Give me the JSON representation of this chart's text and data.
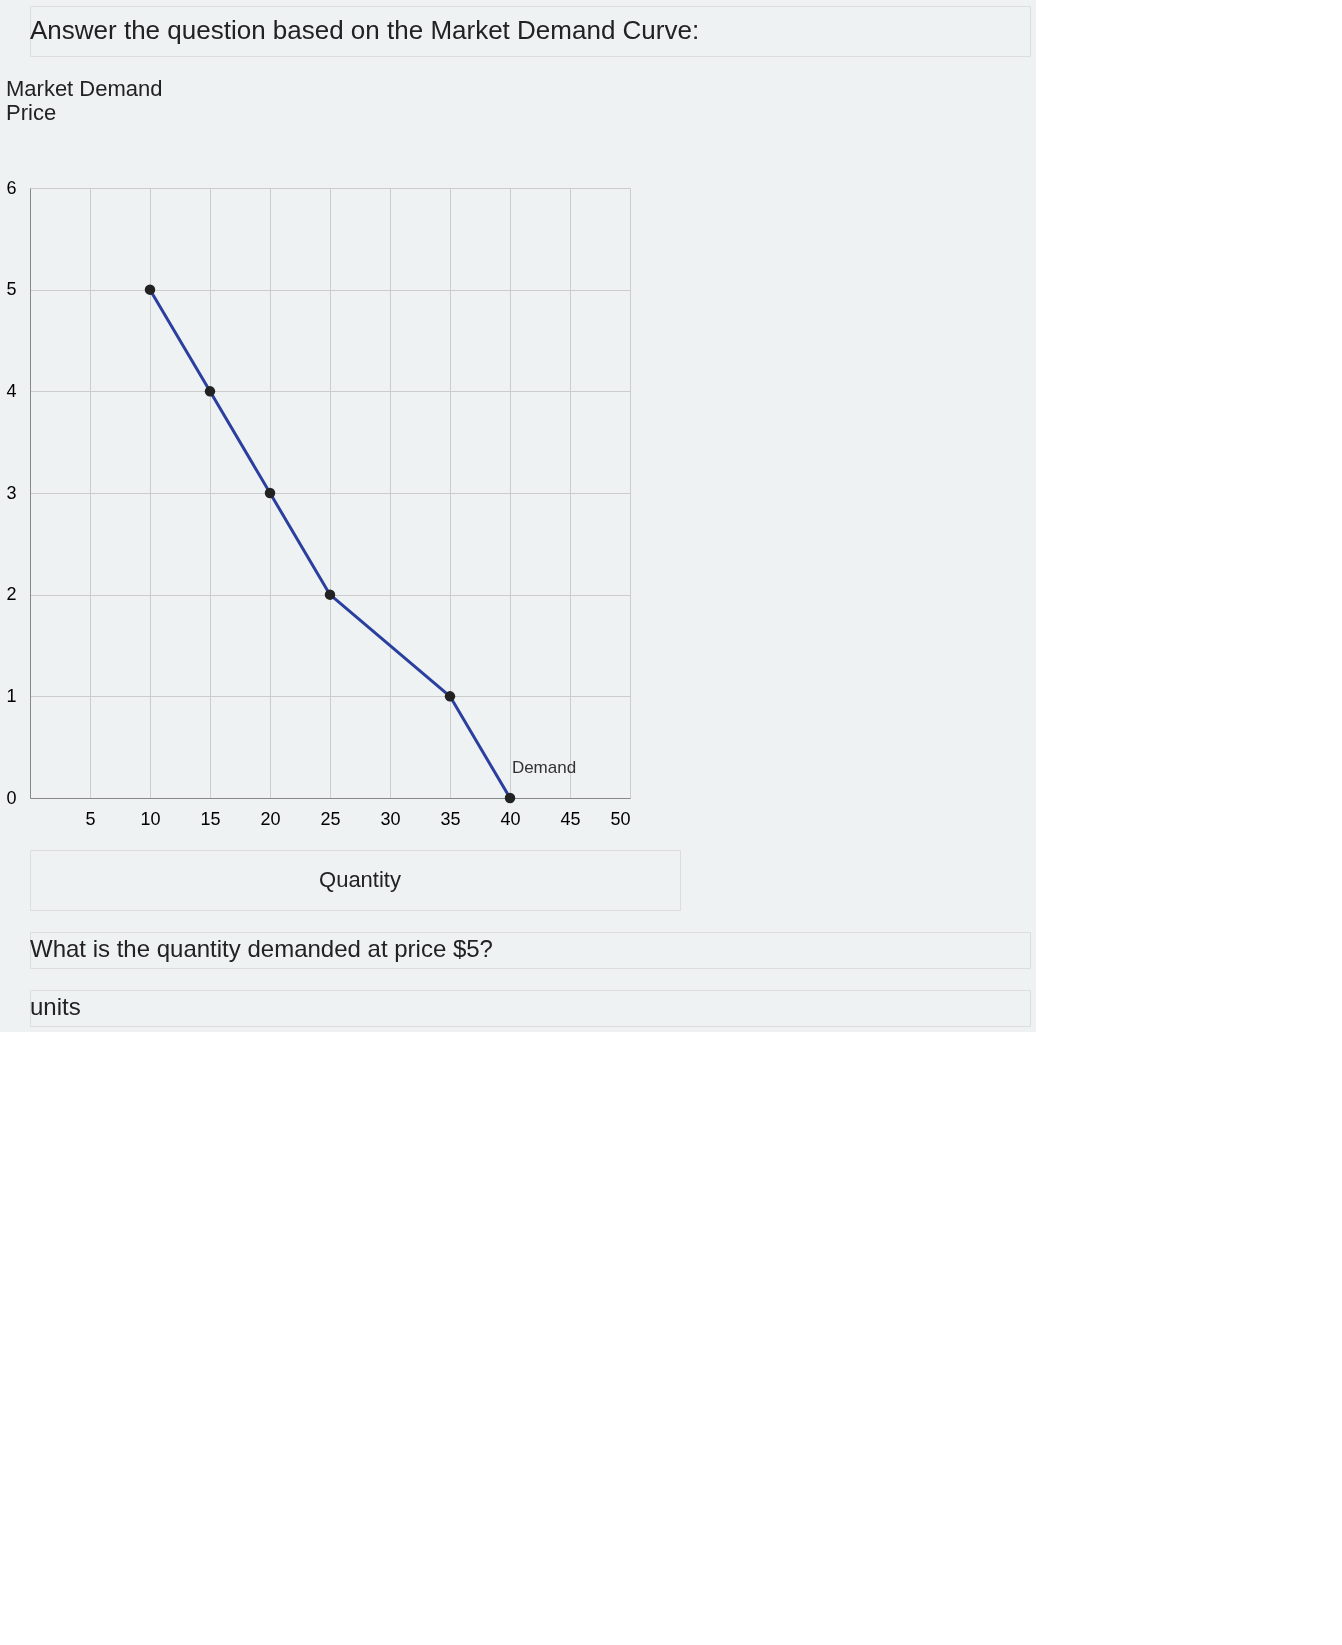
{
  "chart_data": {
    "type": "line",
    "title": "Market Demand",
    "xlabel": "Quantity",
    "ylabel": "Price",
    "annotations": [
      "Answer the question based on the Market Demand Curve:",
      "What is the quantity demanded at price $5?",
      "units"
    ],
    "x": [
      10,
      15,
      20,
      25,
      35,
      40
    ],
    "series": [
      {
        "name": "Demand",
        "color": "#2a3f9e",
        "values": [
          5,
          4,
          3,
          2,
          1,
          0
        ]
      }
    ],
    "xlim": [
      0,
      50
    ],
    "xticks": [
      5,
      10,
      15,
      20,
      25,
      30,
      35,
      40,
      45,
      50
    ],
    "ylim": [
      0,
      6
    ],
    "yticks": [
      0,
      1,
      2,
      3,
      4,
      5,
      6
    ],
    "grid": true,
    "marker": "circle",
    "line_style": "solid"
  }
}
